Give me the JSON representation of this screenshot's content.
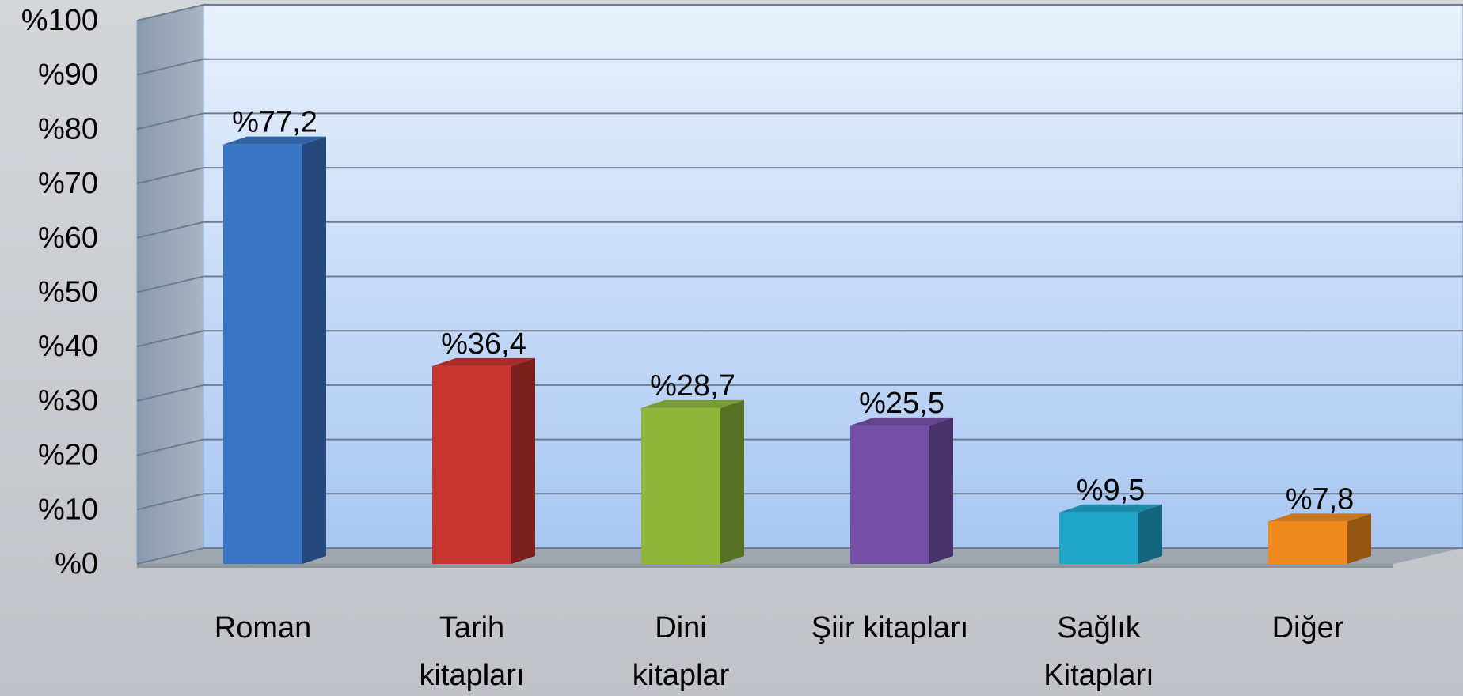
{
  "chart_data": {
    "type": "bar",
    "categories": [
      "Roman",
      "Tarih\nkitapları",
      "Dini\nkitaplar",
      "Şiir kitapları",
      "Sağlık\nKitapları",
      "Diğer"
    ],
    "values": [
      77.2,
      36.4,
      28.7,
      25.5,
      9.5,
      7.8
    ],
    "value_labels": [
      "%77,2",
      "%36,4",
      "%28,7",
      "%25,5",
      "%9,5",
      "%7,8"
    ],
    "colors": [
      "#3a75c4",
      "#c83430",
      "#8db63a",
      "#7450a8",
      "#21a5c8",
      "#f08a1e"
    ],
    "ylim": [
      0,
      100
    ],
    "yticks": [
      {
        "value": 0,
        "label": "%0"
      },
      {
        "value": 10,
        "label": "%10"
      },
      {
        "value": 20,
        "label": "%20"
      },
      {
        "value": 30,
        "label": "%30"
      },
      {
        "value": 40,
        "label": "%40"
      },
      {
        "value": 50,
        "label": "%50"
      },
      {
        "value": 60,
        "label": "%60"
      },
      {
        "value": 70,
        "label": "%70"
      },
      {
        "value": 80,
        "label": "%80"
      },
      {
        "value": 90,
        "label": "%90"
      },
      {
        "value": 100,
        "label": "%100"
      }
    ],
    "grid": true
  }
}
